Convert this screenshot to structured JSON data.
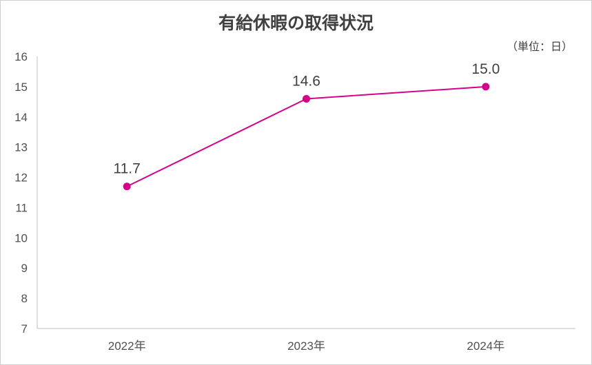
{
  "chart_data": {
    "type": "line",
    "title": "有給休暇の取得状況",
    "unit_label": "（単位：日）",
    "categories": [
      "2022年",
      "2023年",
      "2024年"
    ],
    "series": [
      {
        "values": [
          11.7,
          14.6,
          15.0
        ],
        "color": "#d6008a"
      }
    ],
    "data_labels": [
      "11.7",
      "14.6",
      "15.0"
    ],
    "y_ticks": [
      "7",
      "8",
      "9",
      "10",
      "11",
      "12",
      "13",
      "14",
      "15",
      "16"
    ],
    "ylim": [
      7,
      16
    ],
    "grid": false,
    "legend": "none",
    "axis_color": "#bfbfbf"
  }
}
